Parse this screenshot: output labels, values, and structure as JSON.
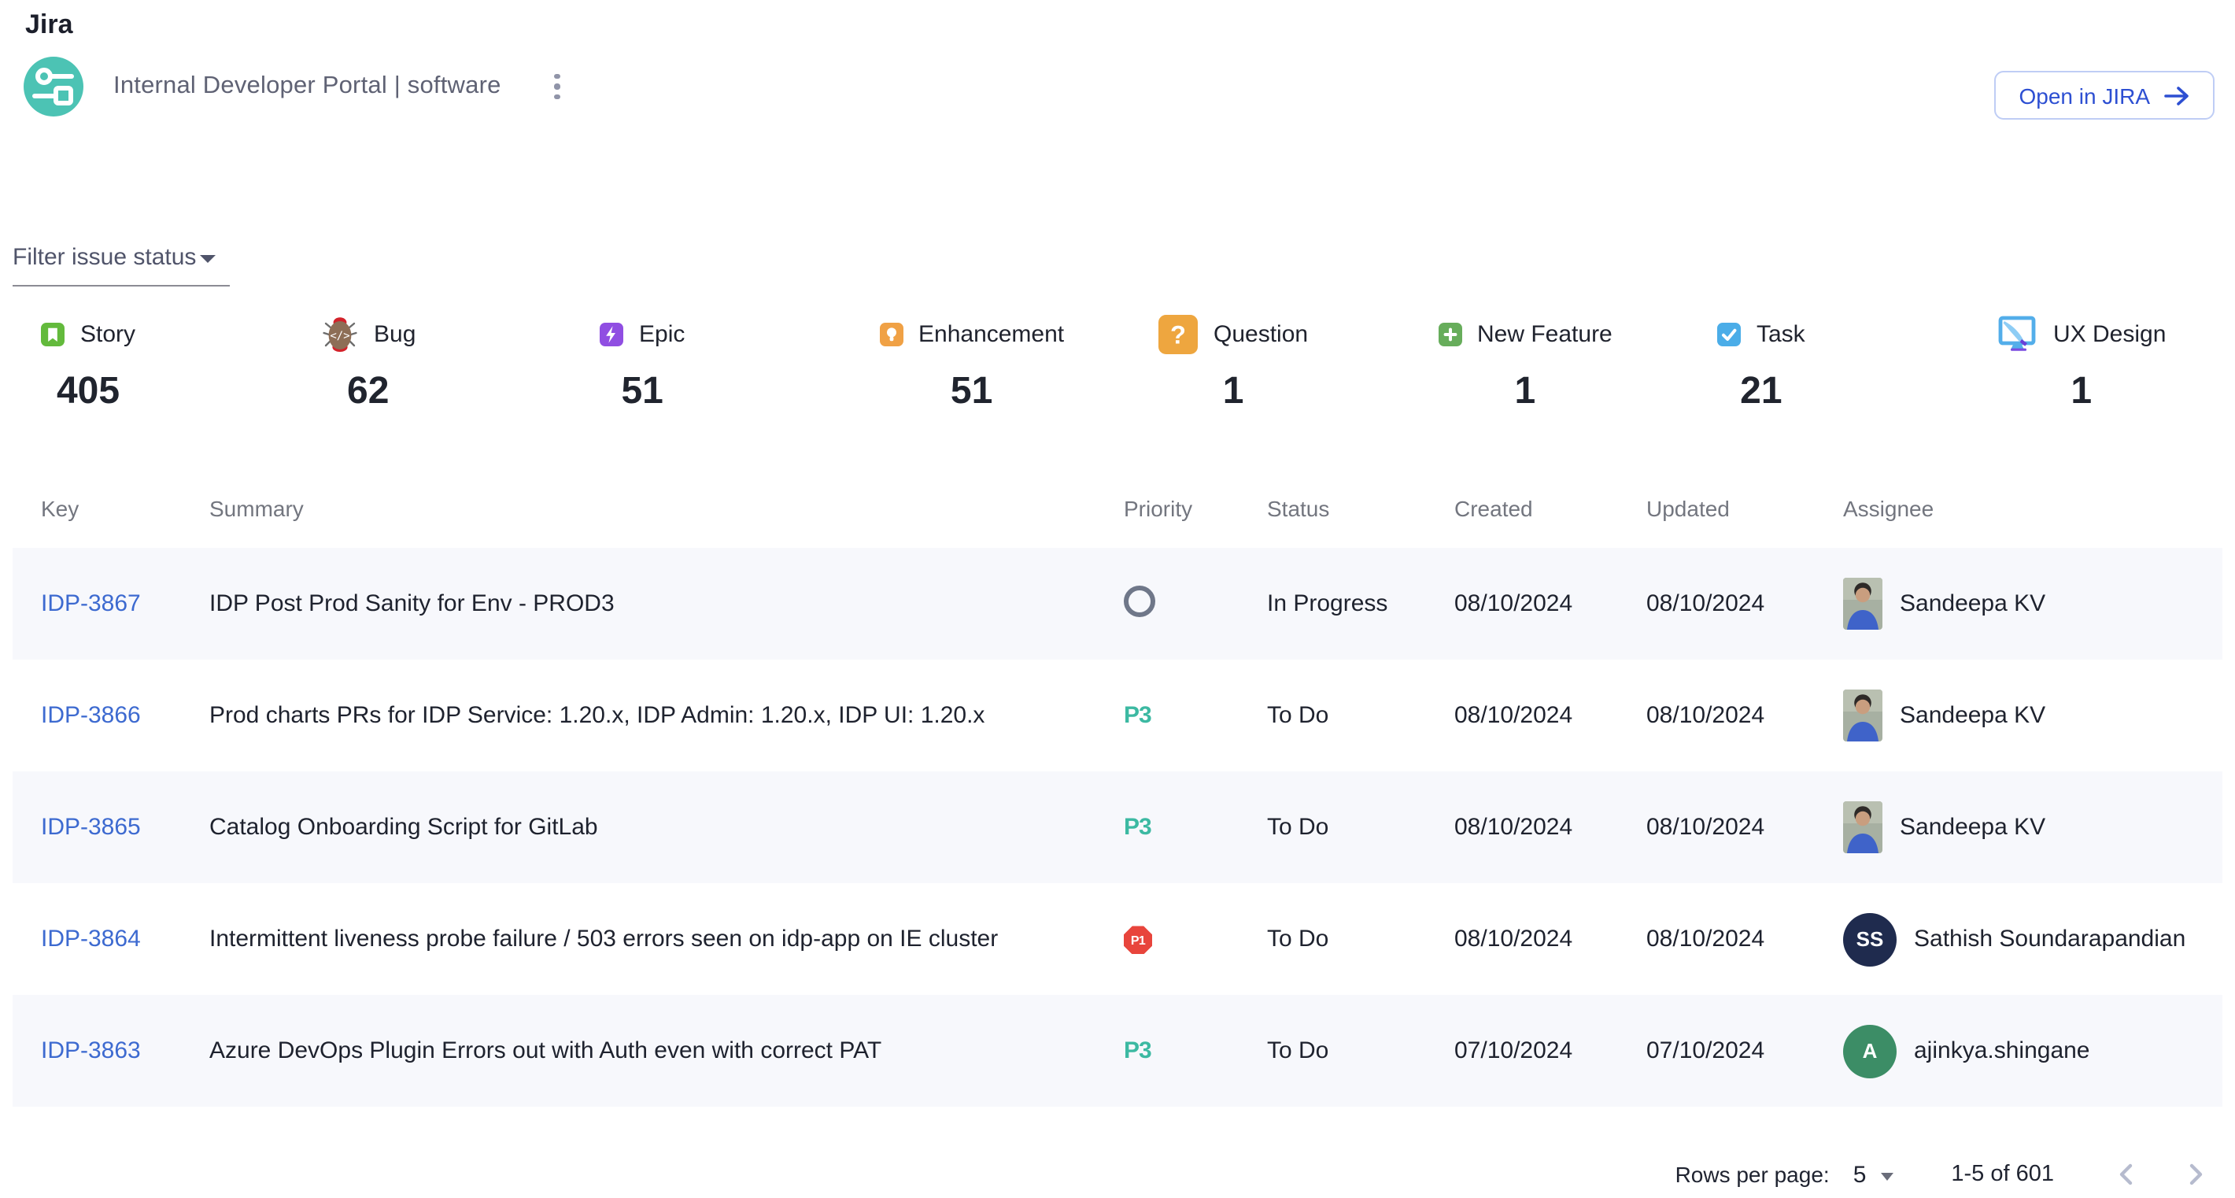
{
  "header": {
    "title": "Jira",
    "subtitle": "Internal Developer Portal | software",
    "open_button_label": "Open in JIRA"
  },
  "filter": {
    "label": "Filter issue status"
  },
  "colors": {
    "accent_blue": "#2d4fd2",
    "logo_teal": "#4cc3b4",
    "story_green": "#63BA3C",
    "epic_purple": "#904EE2",
    "enhancement_orange": "#F0A145",
    "question_orange": "#EEA63F",
    "new_feature_green": "#67AD5B",
    "task_blue": "#4BADE8",
    "priority_teal": "#3cb9a2",
    "priority_red": "#e8453c",
    "zebra_row": "#f7f8fc"
  },
  "issue_counters": [
    {
      "label": "Story",
      "count": 405,
      "icon": "story-icon",
      "size": "sm"
    },
    {
      "label": "Bug",
      "count": 62,
      "icon": "bug-icon",
      "size": "lg"
    },
    {
      "label": "Epic",
      "count": 51,
      "icon": "epic-icon",
      "size": "sm"
    },
    {
      "label": "Enhancement",
      "count": 51,
      "icon": "enhancement-icon",
      "size": "sm"
    },
    {
      "label": "Question",
      "count": 1,
      "icon": "question-icon",
      "size": "lg"
    },
    {
      "label": "New Feature",
      "count": 1,
      "icon": "new-feature-icon",
      "size": "sm"
    },
    {
      "label": "Task",
      "count": 21,
      "icon": "task-icon",
      "size": "sm"
    },
    {
      "label": "UX Design",
      "count": 1,
      "icon": "ux-design-icon",
      "size": "lg"
    }
  ],
  "table": {
    "columns": [
      "Key",
      "Summary",
      "Priority",
      "Status",
      "Created",
      "Updated",
      "Assignee"
    ],
    "rows": [
      {
        "key": "IDP-3867",
        "summary": "IDP Post Prod Sanity for Env - PROD3",
        "priority": "",
        "status": "In Progress",
        "created": "08/10/2024",
        "updated": "08/10/2024",
        "assignee": "Sandeepa KV",
        "avatar": {
          "kind": "photo",
          "initials": "",
          "color": ""
        }
      },
      {
        "key": "IDP-3866",
        "summary": "Prod charts PRs for IDP Service: 1.20.x, IDP Admin: 1.20.x, IDP UI: 1.20.x",
        "priority": "P3",
        "status": "To Do",
        "created": "08/10/2024",
        "updated": "08/10/2024",
        "assignee": "Sandeepa KV",
        "avatar": {
          "kind": "photo",
          "initials": "",
          "color": ""
        }
      },
      {
        "key": "IDP-3865",
        "summary": "Catalog Onboarding Script for GitLab",
        "priority": "P3",
        "status": "To Do",
        "created": "08/10/2024",
        "updated": "08/10/2024",
        "assignee": "Sandeepa KV",
        "avatar": {
          "kind": "photo",
          "initials": "",
          "color": ""
        }
      },
      {
        "key": "IDP-3864",
        "summary": "Intermittent liveness probe failure / 503 errors seen on idp-app on IE cluster",
        "priority": "P1",
        "status": "To Do",
        "created": "08/10/2024",
        "updated": "08/10/2024",
        "assignee": "Sathish Soundarapandian",
        "avatar": {
          "kind": "initials",
          "initials": "SS",
          "color": "#1f2b4e"
        }
      },
      {
        "key": "IDP-3863",
        "summary": "Azure DevOps Plugin Errors out with Auth even with correct PAT",
        "priority": "P3",
        "status": "To Do",
        "created": "07/10/2024",
        "updated": "07/10/2024",
        "assignee": "ajinkya.shingane",
        "avatar": {
          "kind": "initials",
          "initials": "A",
          "color": "#3c8d66"
        }
      }
    ]
  },
  "pagination": {
    "rows_per_page_label": "Rows per page:",
    "rows_per_page_value": "5",
    "range": "1-5 of 601"
  }
}
